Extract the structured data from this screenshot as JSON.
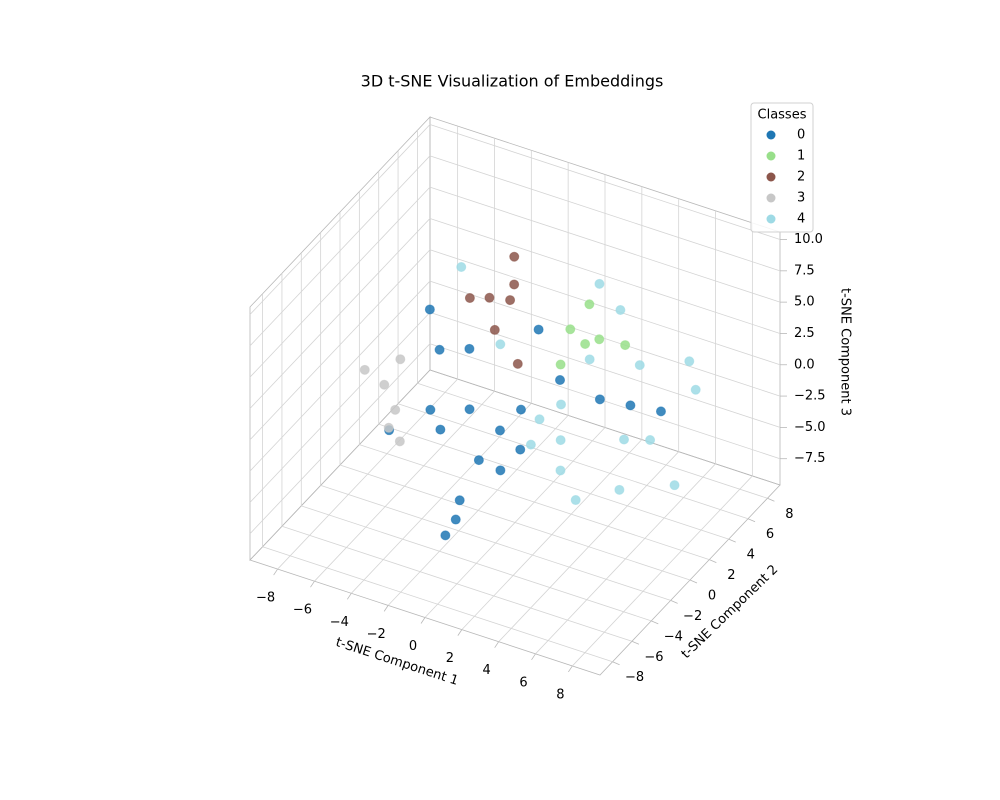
{
  "chart_data": {
    "type": "scatter3d",
    "title": "3D t-SNE Visualization of Embeddings",
    "x_label": "t-SNE Component 1",
    "y_label": "t-SNE Component 2",
    "z_label": "t-SNE Component 3",
    "legend_title": "Classes",
    "legend_position": "upper right",
    "grid": true,
    "xlim": [
      -9.5,
      9.5
    ],
    "ylim": [
      -9.3,
      9.3
    ],
    "zlim": [
      -9.6,
      10.6
    ],
    "xticks": [
      {
        "value": -8,
        "label": "−8"
      },
      {
        "value": -6,
        "label": "−6"
      },
      {
        "value": -4,
        "label": "−4"
      },
      {
        "value": -2,
        "label": "−2"
      },
      0,
      2,
      4,
      6,
      8
    ],
    "yticks": [
      {
        "value": -8,
        "label": "−8"
      },
      {
        "value": -6,
        "label": "−6"
      },
      {
        "value": -4,
        "label": "−4"
      },
      {
        "value": -2,
        "label": "−2"
      },
      0,
      2,
      4,
      6,
      8
    ],
    "zticks": [
      {
        "value": -7.5,
        "label": "−7.5"
      },
      {
        "value": -5,
        "label": "−5.0"
      },
      {
        "value": -2.5,
        "label": "−2.5"
      },
      {
        "value": 0,
        "label": "0.0"
      },
      2.5,
      {
        "value": 5,
        "label": "5.0"
      },
      7.5,
      {
        "value": 10,
        "label": "10.0"
      }
    ],
    "series": [
      {
        "name": "0",
        "color": "#1f77b4",
        "x": [
          -1.1,
          -0.9,
          -0.7,
          -0.5,
          -2.1,
          -0.2,
          -3.7,
          -5.1,
          -4.2,
          -5.2,
          -3.0,
          -0.4,
          3.4,
          4.9,
          6.4,
          0.6,
          0.5,
          -0.8,
          -3.0,
          0.1
        ],
        "y": [
          -5.1,
          -4.0,
          -2.4,
          -0.6,
          -0.7,
          1.0,
          -1.7,
          -3.3,
          0.2,
          1.1,
          1.0,
          3.2,
          2.3,
          2.6,
          2.9,
          -0.6,
          3.7,
          -4.6,
          -2.0,
          -1.7
        ],
        "z": [
          -7.0,
          -5.0,
          -3.0,
          -2.0,
          -1.0,
          -1.5,
          -1.0,
          -2.0,
          2.0,
          4.0,
          2.0,
          3.0,
          0.0,
          0.0,
          0.0,
          -3.0,
          -1.0,
          -6.0,
          -2.0,
          -4.0
        ]
      },
      {
        "name": "1",
        "color": "#98df8a",
        "x": [
          0.9,
          1.2,
          1.6,
          3.3,
          0.9,
          2.0
        ],
        "y": [
          4.0,
          5.4,
          4.2,
          5.1,
          3.0,
          4.9
        ],
        "z": [
          3.0,
          4.0,
          2.0,
          2.0,
          1.0,
          2.0
        ]
      },
      {
        "name": "2",
        "color": "#8c564b",
        "x": [
          -2.3,
          -2.2,
          -2.7,
          -2.0,
          -2.2,
          -0.9,
          -3.5
        ],
        "y": [
          4.3,
          4.1,
          2.5,
          3.3,
          2.1,
          2.0,
          2.0
        ],
        "z": [
          7.0,
          5.0,
          5.0,
          4.5,
          3.0,
          1.0,
          5.0
        ]
      },
      {
        "name": "3",
        "color": "#c7c7c7",
        "x": [
          -7.0,
          -5.7,
          -6.1,
          -5.4,
          -5.7,
          -5.2
        ],
        "y": [
          -2.2,
          -1.0,
          -1.9,
          -2.1,
          -2.2,
          -2.0
        ],
        "z": [
          1.0,
          1.5,
          0.0,
          -1.5,
          -3.0,
          -4.0
        ]
      },
      {
        "name": "4",
        "color": "#9edae5",
        "x": [
          -3.6,
          1.8,
          3.2,
          6.1,
          6.5,
          4.2,
          2.1,
          3.4,
          5.3,
          5.6,
          7.4,
          0.7,
          -1.9,
          1.5,
          4.5,
          1.9,
          1.9,
          0.6
        ],
        "y": [
          1.3,
          5.3,
          4.8,
          6.4,
          6.3,
          4.9,
          0.7,
          -0.2,
          0.7,
          3.3,
          2.4,
          1.2,
          2.1,
          1.9,
          2.7,
          4.1,
          1.1,
          0.5
        ],
        "z": [
          8.0,
          6.0,
          5.0,
          1.0,
          -1.0,
          1.0,
          -5.0,
          -6.0,
          -5.0,
          -3.0,
          -5.0,
          -2.0,
          2.0,
          -1.0,
          -3.0,
          1.0,
          -3.0,
          -3.5
        ]
      }
    ]
  }
}
